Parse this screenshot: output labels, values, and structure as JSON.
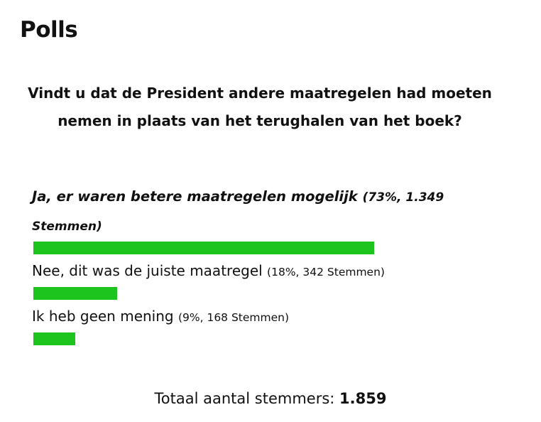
{
  "header": {
    "title": "Polls"
  },
  "poll": {
    "question": "Vindt u dat de President andere maatregelen had moeten nemen in plaats van het terughalen van het boek?",
    "bar_color": "#1ec41e",
    "options": [
      {
        "label": "Ja, er waren betere maatregelen mogelijk",
        "meta": "(73%, 1.349 Stemmen)",
        "percent": 73,
        "leading": true
      },
      {
        "label": "Nee, dit was de juiste maatregel",
        "meta": "(18%, 342 Stemmen)",
        "percent": 18
      },
      {
        "label": "Ik heb geen mening",
        "meta": "(9%, 168 Stemmen)",
        "percent": 9
      }
    ],
    "total_label": "Totaal aantal stemmers:",
    "total_value": "1.859"
  }
}
